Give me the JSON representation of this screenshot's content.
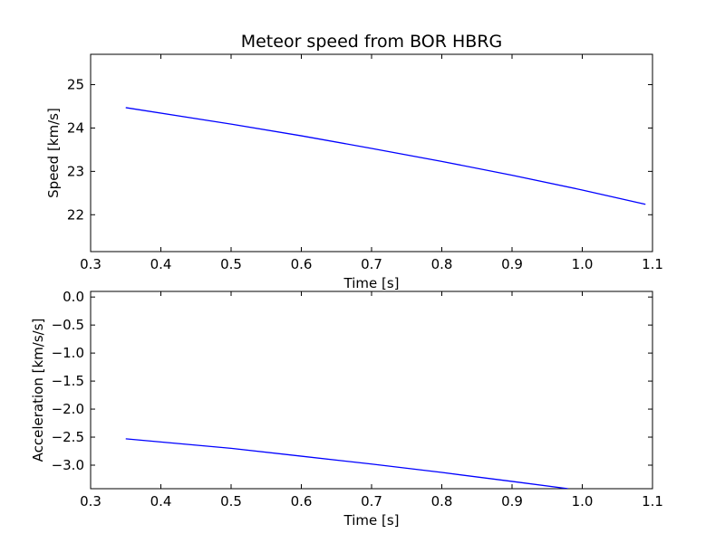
{
  "chart_data": [
    {
      "type": "line",
      "title": "Meteor speed from  BOR HBRG",
      "xlabel": "Time [s]",
      "ylabel": "Speed [km/s]",
      "xlim": [
        0.3,
        1.1
      ],
      "ylim": [
        21.15,
        25.7
      ],
      "x_ticks": [
        "0.3",
        "0.4",
        "0.5",
        "0.6",
        "0.7",
        "0.8",
        "0.9",
        "1.0",
        "1.1"
      ],
      "y_ticks": [
        "22",
        "23",
        "24",
        "25"
      ],
      "grid": false,
      "color": "#0000ff",
      "series": [
        {
          "x": [
            0.35,
            0.5,
            0.6,
            0.7,
            0.8,
            0.9,
            1.0,
            1.09
          ],
          "values": [
            24.47,
            24.09,
            23.82,
            23.53,
            23.23,
            22.91,
            22.57,
            22.24
          ]
        }
      ]
    },
    {
      "type": "line",
      "title": "",
      "xlabel": "Time [s]",
      "ylabel": "Acceleration [km/s/s]",
      "xlim": [
        0.3,
        1.1
      ],
      "ylim": [
        -3.42,
        0.1
      ],
      "x_ticks": [
        "0.3",
        "0.4",
        "0.5",
        "0.6",
        "0.7",
        "0.8",
        "0.9",
        "1.0",
        "1.1"
      ],
      "y_ticks": [
        "0.0",
        "−0.5",
        "−1.0",
        "−1.5",
        "−2.0",
        "−2.5",
        "−3.0"
      ],
      "grid": false,
      "color": "#0000ff",
      "series": [
        {
          "x": [
            0.35,
            0.5,
            0.6,
            0.7,
            0.8,
            0.9,
            0.98
          ],
          "values": [
            -2.53,
            -2.7,
            -2.84,
            -2.98,
            -3.13,
            -3.29,
            -3.42
          ]
        }
      ]
    }
  ]
}
